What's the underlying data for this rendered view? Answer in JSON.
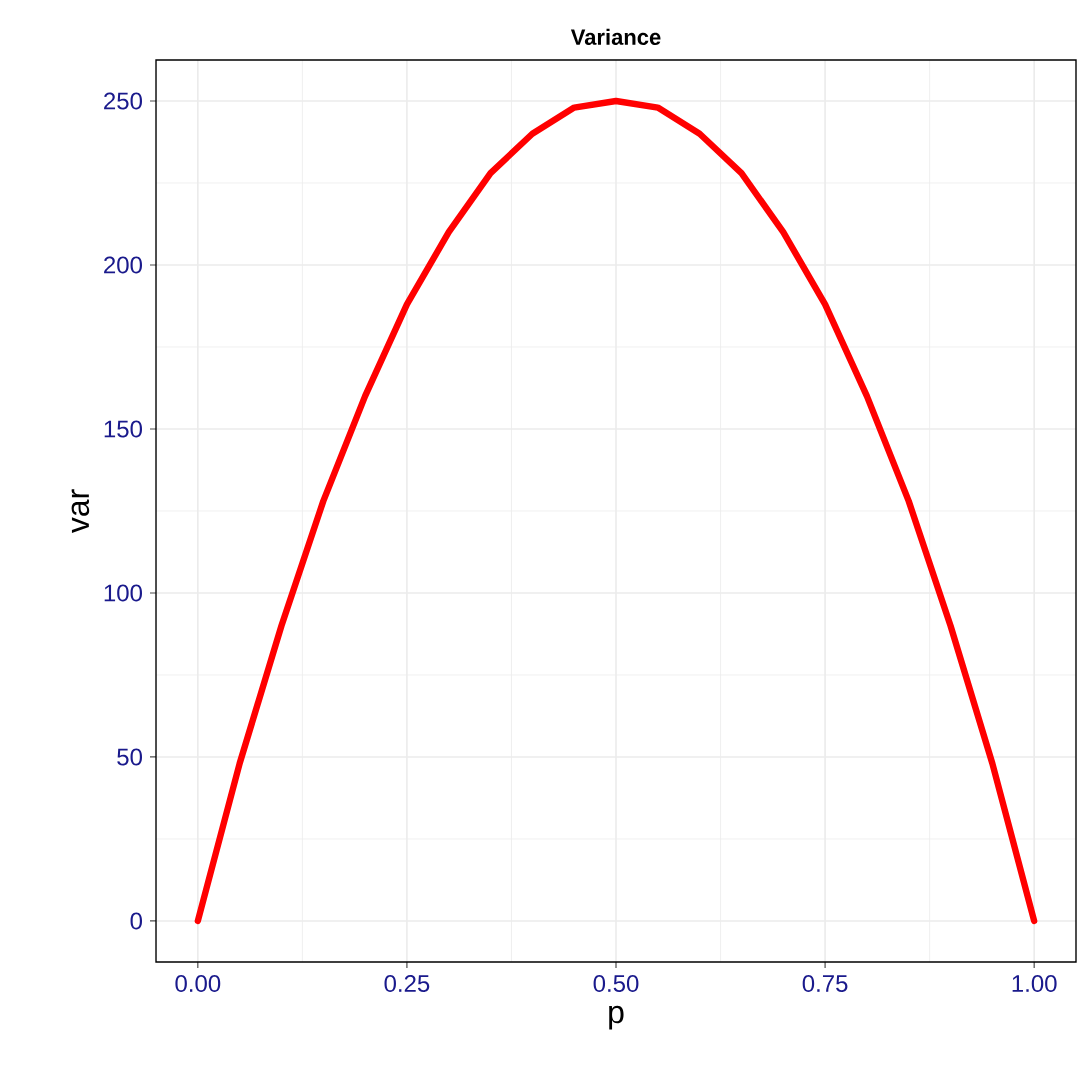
{
  "chart_data": {
    "type": "line",
    "title": "Variance",
    "xlabel": "p",
    "ylabel": "var",
    "x": [
      0,
      0.05,
      0.1,
      0.15,
      0.2,
      0.25,
      0.3,
      0.35,
      0.4,
      0.45,
      0.5,
      0.55,
      0.6,
      0.65,
      0.7,
      0.75,
      0.8,
      0.85,
      0.9,
      0.95,
      1
    ],
    "series": [
      {
        "color": "#ff0000",
        "values": [
          0,
          48,
          90,
          128,
          160,
          188,
          210,
          228,
          240,
          248,
          250,
          248,
          240,
          228,
          210,
          188,
          160,
          128,
          90,
          48,
          0
        ]
      }
    ],
    "xlim": [
      -0.05,
      1.05
    ],
    "ylim": [
      -12.5,
      262.5
    ],
    "xticks": [
      {
        "value": 0,
        "label": "0.00"
      },
      {
        "value": 0.25,
        "label": "0.25"
      },
      {
        "value": 0.5,
        "label": "0.50"
      },
      {
        "value": 0.75,
        "label": "0.75"
      },
      {
        "value": 1,
        "label": "1.00"
      }
    ],
    "yticks": [
      0,
      50,
      100,
      150,
      200,
      250
    ],
    "grid": true
  }
}
